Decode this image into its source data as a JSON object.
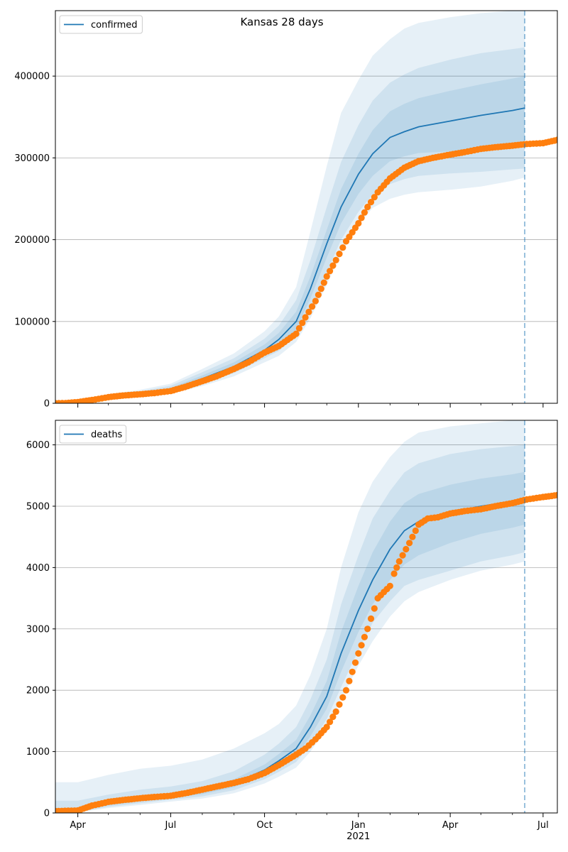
{
  "figure_title": "Kansas 28 days",
  "colors": {
    "model_line": "#1f77b4",
    "observed_points": "#ff7f0e",
    "band": "#1f77b4",
    "grid": "#b0b0b0",
    "forecast_marker": "#1f77b4"
  },
  "chart_data": [
    {
      "type": "line",
      "panel": "confirmed",
      "legend": [
        "confirmed"
      ],
      "legend_placement": "top-left",
      "grid": "horizontal",
      "xlim": [
        "2020-03-10",
        "2021-07-15"
      ],
      "ylim": [
        0,
        480000
      ],
      "yticks": [
        0,
        100000,
        200000,
        300000,
        400000
      ],
      "forecast_start": "2021-06-13",
      "model": {
        "dates": [
          "2020-03-10",
          "2020-04-01",
          "2020-05-01",
          "2020-06-01",
          "2020-07-01",
          "2020-08-01",
          "2020-09-01",
          "2020-10-01",
          "2020-10-15",
          "2020-11-01",
          "2020-11-15",
          "2020-12-01",
          "2020-12-15",
          "2021-01-01",
          "2021-01-15",
          "2021-02-01",
          "2021-02-15",
          "2021-03-01",
          "2021-04-01",
          "2021-05-01",
          "2021-06-01",
          "2021-06-13"
        ],
        "median": [
          0,
          1500,
          7000,
          11000,
          17000,
          30000,
          45000,
          65000,
          78000,
          100000,
          140000,
          195000,
          240000,
          280000,
          305000,
          325000,
          332000,
          338000,
          345000,
          352000,
          358000,
          361000
        ],
        "band_50_lower": [
          0,
          1200,
          6000,
          10000,
          15000,
          27000,
          41000,
          59000,
          70000,
          90000,
          128000,
          178000,
          220000,
          256000,
          278000,
          296000,
          302000,
          306000,
          308000,
          310000,
          312000,
          313000
        ],
        "band_50_upper": [
          0,
          1800,
          8000,
          12500,
          19000,
          34000,
          50000,
          72000,
          86000,
          112000,
          155000,
          212000,
          262000,
          305000,
          334000,
          357000,
          366000,
          373000,
          382000,
          390000,
          397000,
          400000
        ],
        "band_80_lower": [
          0,
          900,
          5000,
          9000,
          13500,
          24000,
          37000,
          55000,
          64000,
          82000,
          115000,
          160000,
          200000,
          234000,
          255000,
          268000,
          274000,
          278000,
          281000,
          283000,
          286000,
          287000
        ],
        "band_80_upper": [
          0,
          2400,
          9500,
          14500,
          21500,
          38000,
          55000,
          79000,
          95000,
          126000,
          175000,
          240000,
          295000,
          340000,
          370000,
          392000,
          402000,
          410000,
          420000,
          428000,
          433000,
          435000
        ],
        "band_95_lower": [
          0,
          700,
          4000,
          8000,
          12000,
          21000,
          33000,
          50000,
          58000,
          75000,
          104000,
          145000,
          183000,
          218000,
          239000,
          250000,
          255000,
          258000,
          261000,
          265000,
          272000,
          276000
        ],
        "band_95_upper": [
          0,
          3200,
          11000,
          16500,
          24000,
          42000,
          61000,
          88000,
          106000,
          142000,
          210000,
          290000,
          355000,
          395000,
          425000,
          445000,
          458000,
          465000,
          472000,
          477000,
          480000,
          480000
        ]
      },
      "observed": {
        "dates": [
          "2020-03-10",
          "2020-03-20",
          "2020-04-01",
          "2020-04-15",
          "2020-05-01",
          "2020-05-15",
          "2020-06-01",
          "2020-06-15",
          "2020-07-01",
          "2020-07-15",
          "2020-08-01",
          "2020-08-15",
          "2020-09-01",
          "2020-09-15",
          "2020-10-01",
          "2020-10-15",
          "2020-11-01",
          "2020-11-10",
          "2020-11-20",
          "2020-12-01",
          "2020-12-10",
          "2020-12-20",
          "2021-01-01",
          "2021-01-10",
          "2021-01-20",
          "2021-02-01",
          "2021-02-15",
          "2021-03-01",
          "2021-03-15",
          "2021-04-01",
          "2021-04-15",
          "2021-05-01",
          "2021-05-15",
          "2021-06-01",
          "2021-06-15",
          "2021-07-01",
          "2021-07-15"
        ],
        "values": [
          100,
          300,
          1500,
          4000,
          7500,
          9500,
          11000,
          12500,
          15000,
          20000,
          27000,
          33000,
          42000,
          50000,
          62000,
          70000,
          85000,
          105000,
          125000,
          155000,
          175000,
          198000,
          220000,
          240000,
          258000,
          275000,
          288000,
          296000,
          300000,
          304000,
          307000,
          311000,
          313000,
          315000,
          317000,
          318000,
          322000
        ]
      }
    },
    {
      "type": "line",
      "panel": "deaths",
      "legend": [
        "deaths"
      ],
      "legend_placement": "top-left",
      "grid": "horizontal",
      "xlim": [
        "2020-03-10",
        "2021-07-15"
      ],
      "ylim": [
        0,
        6400
      ],
      "yticks": [
        0,
        1000,
        2000,
        3000,
        4000,
        5000,
        6000
      ],
      "xticks": [
        "Apr",
        "Jul",
        "Oct",
        "Jan",
        "Apr",
        "Jul"
      ],
      "xtick_dates": [
        "2020-04-01",
        "2020-07-01",
        "2020-10-01",
        "2021-01-01",
        "2021-04-01",
        "2021-07-01"
      ],
      "xtick_sublabel": "2021",
      "forecast_start": "2021-06-13",
      "model": {
        "dates": [
          "2020-03-10",
          "2020-04-01",
          "2020-05-01",
          "2020-06-01",
          "2020-07-01",
          "2020-08-01",
          "2020-09-01",
          "2020-10-01",
          "2020-10-15",
          "2020-11-01",
          "2020-11-15",
          "2020-12-01",
          "2020-12-15",
          "2021-01-01",
          "2021-01-15",
          "2021-02-01",
          "2021-02-15",
          "2021-03-01",
          "2021-04-01",
          "2021-05-01",
          "2021-06-01",
          "2021-06-13"
        ],
        "median": [
          0,
          40,
          150,
          220,
          280,
          350,
          480,
          700,
          850,
          1050,
          1400,
          1900,
          2600,
          3300,
          3800,
          4300,
          4600,
          4750,
          4900,
          5000,
          5080,
          5100
        ],
        "band_50_lower": [
          0,
          25,
          125,
          190,
          245,
          305,
          420,
          620,
          750,
          930,
          1250,
          1700,
          2300,
          2950,
          3400,
          3800,
          4050,
          4200,
          4400,
          4550,
          4650,
          4700
        ],
        "band_50_upper": [
          20,
          70,
          180,
          260,
          320,
          400,
          550,
          790,
          960,
          1190,
          1590,
          2150,
          2950,
          3700,
          4250,
          4750,
          5050,
          5200,
          5350,
          5450,
          5520,
          5560
        ],
        "band_80_lower": [
          0,
          15,
          100,
          160,
          215,
          270,
          370,
          550,
          670,
          830,
          1120,
          1530,
          2050,
          2650,
          3100,
          3450,
          3700,
          3800,
          3950,
          4100,
          4200,
          4250
        ],
        "band_80_upper": [
          200,
          200,
          300,
          380,
          430,
          520,
          680,
          950,
          1130,
          1400,
          1850,
          2500,
          3400,
          4200,
          4800,
          5250,
          5550,
          5700,
          5850,
          5930,
          5980,
          6000
        ],
        "band_95_lower": [
          0,
          10,
          80,
          130,
          185,
          235,
          320,
          480,
          590,
          740,
          1000,
          1380,
          1850,
          2400,
          2800,
          3200,
          3450,
          3600,
          3800,
          3950,
          4050,
          4100
        ],
        "band_95_upper": [
          500,
          500,
          620,
          720,
          770,
          870,
          1050,
          1300,
          1450,
          1750,
          2250,
          3000,
          4000,
          4900,
          5400,
          5800,
          6050,
          6200,
          6300,
          6350,
          6400,
          6400
        ]
      },
      "observed": {
        "dates": [
          "2020-03-10",
          "2020-04-01",
          "2020-04-15",
          "2020-05-01",
          "2020-05-15",
          "2020-06-01",
          "2020-06-15",
          "2020-07-01",
          "2020-07-15",
          "2020-08-01",
          "2020-08-15",
          "2020-09-01",
          "2020-09-15",
          "2020-10-01",
          "2020-10-15",
          "2020-11-01",
          "2020-11-10",
          "2020-11-20",
          "2020-12-01",
          "2020-12-10",
          "2020-12-20",
          "2021-01-01",
          "2021-01-10",
          "2021-01-20",
          "2021-02-01",
          "2021-02-05",
          "2021-02-10",
          "2021-02-20",
          "2021-03-01",
          "2021-03-10",
          "2021-03-20",
          "2021-04-01",
          "2021-04-15",
          "2021-05-01",
          "2021-05-15",
          "2021-06-01",
          "2021-06-15",
          "2021-07-01",
          "2021-07-15"
        ],
        "values": [
          30,
          40,
          120,
          180,
          210,
          240,
          260,
          280,
          320,
          380,
          430,
          490,
          550,
          650,
          780,
          950,
          1050,
          1200,
          1400,
          1650,
          2000,
          2600,
          3000,
          3500,
          3700,
          3900,
          4100,
          4400,
          4700,
          4800,
          4820,
          4880,
          4920,
          4950,
          5000,
          5050,
          5110,
          5150,
          5180
        ]
      }
    }
  ]
}
